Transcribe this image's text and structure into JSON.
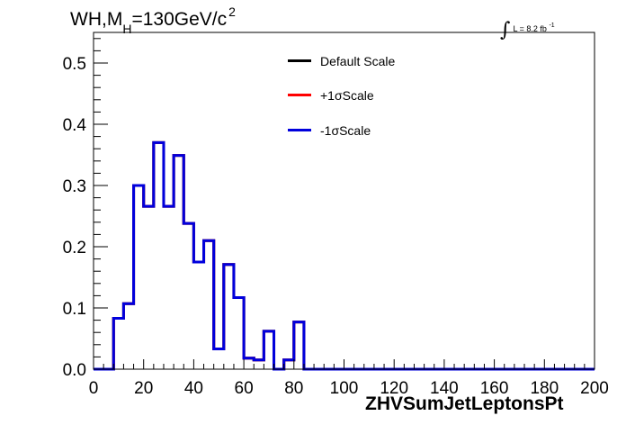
{
  "title": {
    "main_prefix": "WH,M",
    "main_sub": "H",
    "main_value": "=130GeV/c",
    "main_sup": "2",
    "lumi_text": "L = 8.2 fb",
    "lumi_sup": "-1"
  },
  "chart_data": {
    "type": "line",
    "title": "WH,MH=130GeV/c2",
    "xlabel": "ZHVSumJetLeptonsPt",
    "ylabel": "",
    "xlim": [
      0,
      200
    ],
    "ylim": [
      0,
      0.55
    ],
    "x_ticks": [
      0,
      20,
      40,
      60,
      80,
      100,
      120,
      140,
      160,
      180,
      200
    ],
    "y_ticks": [
      0.0,
      0.1,
      0.2,
      0.3,
      0.4,
      0.5
    ],
    "x_tick_labels": [
      "0",
      "20",
      "40",
      "60",
      "80",
      "100",
      "120",
      "140",
      "160",
      "180",
      "200"
    ],
    "y_tick_labels": [
      "0.0",
      "0.1",
      "0.2",
      "0.3",
      "0.4",
      "0.5"
    ],
    "grid": false,
    "legend_position": "top-center",
    "bin_edges": [
      0,
      4,
      8,
      12,
      16,
      20,
      24,
      28,
      32,
      36,
      40,
      44,
      48,
      52,
      56,
      60,
      64,
      68,
      72,
      76,
      80,
      84,
      88,
      92,
      96,
      100,
      104,
      108,
      112,
      116,
      120,
      124,
      128,
      132,
      136,
      140,
      144,
      148,
      152,
      156,
      160,
      164,
      168,
      172,
      176,
      180,
      184,
      188,
      192,
      196,
      200
    ],
    "series": [
      {
        "name": "Default Scale",
        "color": "#000000",
        "values": [
          0,
          0,
          0.083,
          0.107,
          0.3,
          0.266,
          0.37,
          0.266,
          0.349,
          0.238,
          0.175,
          0.21,
          0.033,
          0.171,
          0.117,
          0.018,
          0.015,
          0.062,
          0,
          0.015,
          0.077,
          0,
          0,
          0,
          0,
          0,
          0,
          0,
          0,
          0,
          0,
          0,
          0,
          0,
          0,
          0,
          0,
          0,
          0,
          0,
          0,
          0,
          0,
          0,
          0,
          0,
          0,
          0,
          0,
          0
        ]
      },
      {
        "name": "+1σScale",
        "color": "#ff0000",
        "values": [
          0,
          0,
          0.083,
          0.107,
          0.3,
          0.266,
          0.37,
          0.266,
          0.349,
          0.238,
          0.175,
          0.21,
          0.033,
          0.171,
          0.117,
          0.018,
          0.015,
          0.062,
          0,
          0.015,
          0.077,
          0,
          0,
          0,
          0,
          0,
          0,
          0,
          0,
          0,
          0,
          0,
          0,
          0,
          0,
          0,
          0,
          0,
          0,
          0,
          0,
          0,
          0,
          0,
          0,
          0,
          0,
          0,
          0,
          0
        ]
      },
      {
        "name": "-1σScale",
        "color": "#0000dd",
        "values": [
          0,
          0,
          0.083,
          0.107,
          0.3,
          0.266,
          0.37,
          0.266,
          0.349,
          0.238,
          0.175,
          0.21,
          0.033,
          0.171,
          0.117,
          0.018,
          0.015,
          0.062,
          0,
          0.015,
          0.077,
          0,
          0,
          0,
          0,
          0,
          0,
          0,
          0,
          0,
          0,
          0,
          0,
          0,
          0,
          0,
          0,
          0,
          0,
          0,
          0,
          0,
          0,
          0,
          0,
          0,
          0,
          0,
          0,
          0
        ]
      }
    ]
  }
}
